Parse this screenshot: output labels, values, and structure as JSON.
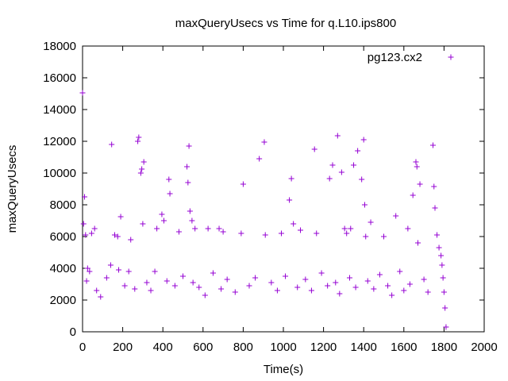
{
  "chart_data": {
    "type": "scatter",
    "title": "maxQueryUsecs vs Time for q.L10.ips800",
    "xlabel": "Time(s)",
    "ylabel": "maxQueryUsecs",
    "xlim": [
      0,
      2000
    ],
    "ylim": [
      0,
      18000
    ],
    "x_ticks": [
      "0",
      "200",
      "400",
      "600",
      "800",
      "1000",
      "1200",
      "1400",
      "1600",
      "1800",
      "2000"
    ],
    "y_ticks": [
      "0",
      "2000",
      "4000",
      "6000",
      "8000",
      "10000",
      "12000",
      "14000",
      "16000",
      "18000"
    ],
    "grid": false,
    "legend_position": "top-right",
    "marker": "+",
    "series": [
      {
        "name": "pg123.cx2",
        "color": "#9400d3",
        "points": [
          [
            0,
            15050
          ],
          [
            5,
            6800
          ],
          [
            10,
            8500
          ],
          [
            15,
            6100
          ],
          [
            25,
            4000
          ],
          [
            35,
            3800
          ],
          [
            45,
            6200
          ],
          [
            60,
            6500
          ],
          [
            145,
            11800
          ],
          [
            160,
            6100
          ],
          [
            175,
            6000
          ],
          [
            190,
            7250
          ],
          [
            240,
            5800
          ],
          [
            275,
            12000
          ],
          [
            280,
            12250
          ],
          [
            290,
            10000
          ],
          [
            295,
            10250
          ],
          [
            305,
            10700
          ],
          [
            300,
            6800
          ],
          [
            370,
            6500
          ],
          [
            395,
            7400
          ],
          [
            405,
            7000
          ],
          [
            430,
            9600
          ],
          [
            435,
            8700
          ],
          [
            480,
            6300
          ],
          [
            520,
            10400
          ],
          [
            525,
            9400
          ],
          [
            530,
            11700
          ],
          [
            535,
            7600
          ],
          [
            545,
            7000
          ],
          [
            560,
            6500
          ],
          [
            625,
            6500
          ],
          [
            680,
            6500
          ],
          [
            700,
            6300
          ],
          [
            790,
            6200
          ],
          [
            800,
            9300
          ],
          [
            880,
            10900
          ],
          [
            905,
            11950
          ],
          [
            910,
            6100
          ],
          [
            990,
            6200
          ],
          [
            1030,
            8300
          ],
          [
            1040,
            9650
          ],
          [
            1050,
            6800
          ],
          [
            1085,
            6400
          ],
          [
            1155,
            11500
          ],
          [
            1165,
            6200
          ],
          [
            1230,
            9650
          ],
          [
            1245,
            10500
          ],
          [
            1270,
            12350
          ],
          [
            1290,
            10050
          ],
          [
            1305,
            6500
          ],
          [
            1315,
            6200
          ],
          [
            1335,
            6500
          ],
          [
            1350,
            10500
          ],
          [
            1370,
            11400
          ],
          [
            1390,
            9600
          ],
          [
            1400,
            12100
          ],
          [
            1405,
            8000
          ],
          [
            1410,
            6000
          ],
          [
            1435,
            6900
          ],
          [
            1500,
            6000
          ],
          [
            1560,
            7300
          ],
          [
            1620,
            6500
          ],
          [
            1645,
            8600
          ],
          [
            1660,
            10700
          ],
          [
            1665,
            10400
          ],
          [
            1680,
            9300
          ],
          [
            1670,
            5600
          ],
          [
            1745,
            11750
          ],
          [
            1750,
            9150
          ],
          [
            1755,
            7800
          ],
          [
            1765,
            6100
          ],
          [
            1775,
            5300
          ],
          [
            1785,
            4800
          ],
          [
            1790,
            4200
          ],
          [
            1795,
            3400
          ],
          [
            1800,
            2500
          ],
          [
            1805,
            1500
          ],
          [
            1810,
            300
          ],
          [
            20,
            3200
          ],
          [
            70,
            2600
          ],
          [
            90,
            2200
          ],
          [
            120,
            3400
          ],
          [
            140,
            4200
          ],
          [
            180,
            3900
          ],
          [
            210,
            2900
          ],
          [
            230,
            3800
          ],
          [
            260,
            2700
          ],
          [
            320,
            3100
          ],
          [
            340,
            2600
          ],
          [
            360,
            3800
          ],
          [
            420,
            3200
          ],
          [
            460,
            2900
          ],
          [
            500,
            3500
          ],
          [
            550,
            3100
          ],
          [
            580,
            2800
          ],
          [
            610,
            2300
          ],
          [
            650,
            3700
          ],
          [
            690,
            2700
          ],
          [
            720,
            3300
          ],
          [
            760,
            2500
          ],
          [
            830,
            2900
          ],
          [
            860,
            3400
          ],
          [
            940,
            3100
          ],
          [
            970,
            2600
          ],
          [
            1010,
            3500
          ],
          [
            1070,
            2800
          ],
          [
            1110,
            3300
          ],
          [
            1140,
            2600
          ],
          [
            1190,
            3700
          ],
          [
            1220,
            2900
          ],
          [
            1260,
            3100
          ],
          [
            1280,
            2400
          ],
          [
            1330,
            3400
          ],
          [
            1360,
            2800
          ],
          [
            1420,
            3200
          ],
          [
            1450,
            2700
          ],
          [
            1480,
            3600
          ],
          [
            1520,
            2900
          ],
          [
            1540,
            2300
          ],
          [
            1580,
            3800
          ],
          [
            1600,
            2600
          ],
          [
            1630,
            3000
          ],
          [
            1700,
            3300
          ],
          [
            1720,
            2500
          ]
        ]
      }
    ]
  }
}
